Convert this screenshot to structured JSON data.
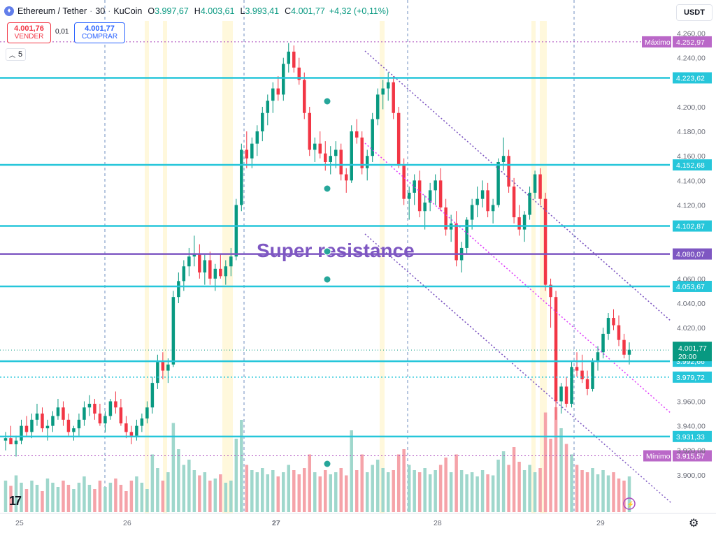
{
  "header": {
    "symbol": "Ethereum / Tether",
    "interval": "30",
    "exchange": "KuCoin",
    "o_label": "O",
    "o_value": "3.997,67",
    "h_label": "H",
    "h_value": "4.003,61",
    "l_label": "L",
    "l_value": "3.993,41",
    "c_label": "C",
    "c_value": "4.001,77",
    "change": "+4,32 (+0,11%)"
  },
  "currency": "USDT",
  "trade": {
    "sell_price": "4.001,76",
    "sell_label": "VENDER",
    "spread": "0,01",
    "buy_price": "4.001,77",
    "buy_label": "COMPRAR"
  },
  "indicator": {
    "count": "5"
  },
  "colors": {
    "up": "#089981",
    "down": "#f23645",
    "level": "#26c6da",
    "super": "#7e57c2",
    "price": "#089981"
  },
  "icons": [
    "tradingview-logo",
    "settings-gear-icon",
    "ethereum-icon",
    "lightning-icon",
    "chevron-up-icon"
  ],
  "chart_data": {
    "type": "candlestick",
    "symbol": "ETH/USDT",
    "timeframe": "30",
    "ylim": [
      3880,
      4270
    ],
    "y_ticks": [
      "4.260,00",
      "4.240,00",
      "4.200,00",
      "4.180,00",
      "4.160,00",
      "4.140,00",
      "4.120,00",
      "4.060,00",
      "4.040,00",
      "4.020,00",
      "3.960,00",
      "3.940,00",
      "3.920,00",
      "3.900,00"
    ],
    "x_ticks": [
      "25",
      "26",
      "27",
      "28",
      "29"
    ],
    "overlay_text": "Super resistance",
    "levels": [
      {
        "price": 4223.62,
        "label": "4.223,62",
        "style": "solid"
      },
      {
        "price": 4152.68,
        "label": "4.152,68",
        "style": "solid"
      },
      {
        "price": 4102.87,
        "label": "4.102,87",
        "style": "solid"
      },
      {
        "price": 4080.07,
        "label": "4.080,07",
        "style": "super"
      },
      {
        "price": 4053.67,
        "label": "4.053,67",
        "style": "solid"
      },
      {
        "price": 3992.66,
        "label": "3.992,66",
        "style": "solid"
      },
      {
        "price": 3979.72,
        "label": "3.979,72",
        "style": "dotted"
      },
      {
        "price": 3931.33,
        "label": "3.931,33",
        "style": "solid"
      }
    ],
    "max_label": "Máximo",
    "max_value": "4.252,97",
    "max_price": 4252.97,
    "min_label": "Mínimo",
    "min_value": "3.915,57",
    "min_price": 3915.57,
    "last_price": "4.001,77",
    "last_price_num": 4001.77,
    "countdown": "20:00",
    "candles": [
      [
        3928,
        3935,
        3920,
        3930
      ],
      [
        3930,
        3940,
        3925,
        3925
      ],
      [
        3925,
        3932,
        3915,
        3928
      ],
      [
        3928,
        3945,
        3925,
        3940
      ],
      [
        3940,
        3948,
        3932,
        3935
      ],
      [
        3935,
        3950,
        3930,
        3945
      ],
      [
        3945,
        3958,
        3940,
        3950
      ],
      [
        3950,
        3955,
        3935,
        3938
      ],
      [
        3938,
        3945,
        3928,
        3940
      ],
      [
        3940,
        3952,
        3935,
        3948
      ],
      [
        3948,
        3962,
        3945,
        3955
      ],
      [
        3955,
        3960,
        3940,
        3945
      ],
      [
        3945,
        3950,
        3932,
        3935
      ],
      [
        3935,
        3940,
        3928,
        3938
      ],
      [
        3938,
        3950,
        3932,
        3945
      ],
      [
        3945,
        3960,
        3940,
        3955
      ],
      [
        3955,
        3965,
        3948,
        3958
      ],
      [
        3958,
        3962,
        3945,
        3950
      ],
      [
        3950,
        3958,
        3940,
        3942
      ],
      [
        3942,
        3952,
        3935,
        3948
      ],
      [
        3948,
        3962,
        3945,
        3960
      ],
      [
        3960,
        3968,
        3950,
        3955
      ],
      [
        3955,
        3962,
        3940,
        3942
      ],
      [
        3942,
        3948,
        3930,
        3935
      ],
      [
        3935,
        3940,
        3925,
        3932
      ],
      [
        3932,
        3945,
        3928,
        3940
      ],
      [
        3940,
        3950,
        3935,
        3946
      ],
      [
        3946,
        3960,
        3942,
        3955
      ],
      [
        3955,
        3980,
        3950,
        3975
      ],
      [
        3975,
        3998,
        3970,
        3992
      ],
      [
        3992,
        4000,
        3978,
        3985
      ],
      [
        3985,
        3995,
        3975,
        3990
      ],
      [
        3990,
        4050,
        3988,
        4045
      ],
      [
        4045,
        4065,
        4040,
        4058
      ],
      [
        4058,
        4075,
        4050,
        4070
      ],
      [
        4070,
        4085,
        4062,
        4078
      ],
      [
        4078,
        4095,
        4070,
        4080
      ],
      [
        4080,
        4088,
        4060,
        4065
      ],
      [
        4065,
        4080,
        4055,
        4075
      ],
      [
        4075,
        4082,
        4055,
        4060
      ],
      [
        4060,
        4072,
        4050,
        4068
      ],
      [
        4068,
        4080,
        4060,
        4062
      ],
      [
        4062,
        4075,
        4055,
        4070
      ],
      [
        4070,
        4085,
        4062,
        4078
      ],
      [
        4078,
        4125,
        4075,
        4120
      ],
      [
        4120,
        4170,
        4115,
        4165
      ],
      [
        4165,
        4180,
        4150,
        4158
      ],
      [
        4158,
        4175,
        4150,
        4170
      ],
      [
        4170,
        4185,
        4160,
        4180
      ],
      [
        4180,
        4200,
        4172,
        4195
      ],
      [
        4195,
        4210,
        4185,
        4205
      ],
      [
        4205,
        4220,
        4195,
        4215
      ],
      [
        4215,
        4225,
        4205,
        4210
      ],
      [
        4210,
        4240,
        4205,
        4235
      ],
      [
        4235,
        4252,
        4228,
        4245
      ],
      [
        4245,
        4250,
        4228,
        4232
      ],
      [
        4232,
        4240,
        4218,
        4222
      ],
      [
        4222,
        4228,
        4190,
        4195
      ],
      [
        4195,
        4200,
        4160,
        4165
      ],
      [
        4165,
        4175,
        4155,
        4170
      ],
      [
        4170,
        4180,
        4158,
        4162
      ],
      [
        4162,
        4172,
        4148,
        4155
      ],
      [
        4155,
        4168,
        4145,
        4160
      ],
      [
        4160,
        4172,
        4150,
        4165
      ],
      [
        4165,
        4170,
        4140,
        4145
      ],
      [
        4145,
        4150,
        4130,
        4140
      ],
      [
        4140,
        4185,
        4138,
        4180
      ],
      [
        4180,
        4190,
        4170,
        4175
      ],
      [
        4175,
        4180,
        4145,
        4150
      ],
      [
        4150,
        4165,
        4140,
        4160
      ],
      [
        4160,
        4195,
        4155,
        4190
      ],
      [
        4190,
        4215,
        4185,
        4210
      ],
      [
        4210,
        4222,
        4198,
        4215
      ],
      [
        4215,
        4228,
        4205,
        4220
      ],
      [
        4220,
        4225,
        4190,
        4195
      ],
      [
        4195,
        4200,
        4150,
        4152
      ],
      [
        4152,
        4158,
        4120,
        4125
      ],
      [
        4125,
        4135,
        4108,
        4130
      ],
      [
        4130,
        4145,
        4120,
        4140
      ],
      [
        4140,
        4148,
        4110,
        4115
      ],
      [
        4115,
        4128,
        4100,
        4122
      ],
      [
        4122,
        4138,
        4115,
        4132
      ],
      [
        4132,
        4145,
        4120,
        4140
      ],
      [
        4140,
        4150,
        4115,
        4118
      ],
      [
        4118,
        4125,
        4095,
        4100
      ],
      [
        4100,
        4112,
        4090,
        4105
      ],
      [
        4105,
        4115,
        4070,
        4075
      ],
      [
        4075,
        4090,
        4065,
        4085
      ],
      [
        4085,
        4110,
        4080,
        4108
      ],
      [
        4108,
        4125,
        4100,
        4120
      ],
      [
        4120,
        4135,
        4110,
        4125
      ],
      [
        4125,
        4140,
        4118,
        4132
      ],
      [
        4132,
        4138,
        4110,
        4115
      ],
      [
        4115,
        4125,
        4105,
        4120
      ],
      [
        4120,
        4158,
        4118,
        4155
      ],
      [
        4155,
        4175,
        4148,
        4160
      ],
      [
        4160,
        4165,
        4130,
        4135
      ],
      [
        4135,
        4142,
        4105,
        4110
      ],
      [
        4110,
        4120,
        4095,
        4100
      ],
      [
        4100,
        4115,
        4090,
        4112
      ],
      [
        4112,
        4135,
        4108,
        4130
      ],
      [
        4130,
        4148,
        4125,
        4145
      ],
      [
        4145,
        4150,
        4120,
        4125
      ],
      [
        4125,
        4130,
        4050,
        4055
      ],
      [
        4055,
        4060,
        4020,
        4045
      ],
      [
        4045,
        4050,
        3945,
        3960
      ],
      [
        3960,
        3975,
        3950,
        3972
      ],
      [
        3972,
        3980,
        3955,
        3958
      ],
      [
        3958,
        3992,
        3955,
        3988
      ],
      [
        3988,
        4000,
        3980,
        3985
      ],
      [
        3985,
        3998,
        3975,
        3978
      ],
      [
        3978,
        3985,
        3965,
        3970
      ],
      [
        3970,
        3995,
        3968,
        3992
      ],
      [
        3992,
        4005,
        3985,
        4000
      ],
      [
        4000,
        4020,
        3995,
        4015
      ],
      [
        4015,
        4032,
        4010,
        4028
      ],
      [
        4028,
        4035,
        4018,
        4022
      ],
      [
        4022,
        4030,
        4005,
        4010
      ],
      [
        4010,
        4015,
        3995,
        3998
      ],
      [
        3998,
        4008,
        3990,
        4002
      ]
    ],
    "volumes": [
      0.3,
      0.25,
      0.35,
      0.28,
      0.22,
      0.3,
      0.26,
      0.2,
      0.32,
      0.28,
      0.24,
      0.3,
      0.26,
      0.22,
      0.28,
      0.34,
      0.26,
      0.22,
      0.3,
      0.24,
      0.28,
      0.32,
      0.26,
      0.2,
      0.3,
      0.34,
      0.28,
      0.22,
      0.55,
      0.42,
      0.3,
      0.38,
      0.85,
      0.6,
      0.45,
      0.5,
      0.4,
      0.35,
      0.38,
      0.3,
      0.32,
      0.36,
      0.28,
      0.3,
      0.7,
      0.88,
      0.45,
      0.4,
      0.38,
      0.42,
      0.36,
      0.4,
      0.34,
      0.38,
      0.45,
      0.4,
      0.36,
      0.42,
      0.55,
      0.38,
      0.34,
      0.4,
      0.36,
      0.38,
      0.42,
      0.35,
      0.78,
      0.4,
      0.55,
      0.38,
      0.45,
      0.5,
      0.42,
      0.38,
      0.4,
      0.55,
      0.6,
      0.45,
      0.4,
      0.38,
      0.42,
      0.36,
      0.4,
      0.45,
      0.52,
      0.38,
      0.55,
      0.4,
      0.36,
      0.38,
      0.34,
      0.4,
      0.36,
      0.35,
      0.5,
      0.58,
      0.45,
      0.62,
      0.48,
      0.4,
      0.45,
      0.38,
      0.42,
      0.95,
      0.7,
      1.0,
      0.8,
      0.65,
      0.55,
      0.45,
      0.4,
      0.38,
      0.42,
      0.36,
      0.4,
      0.35,
      0.38,
      0.32,
      0.3,
      0.34
    ]
  }
}
